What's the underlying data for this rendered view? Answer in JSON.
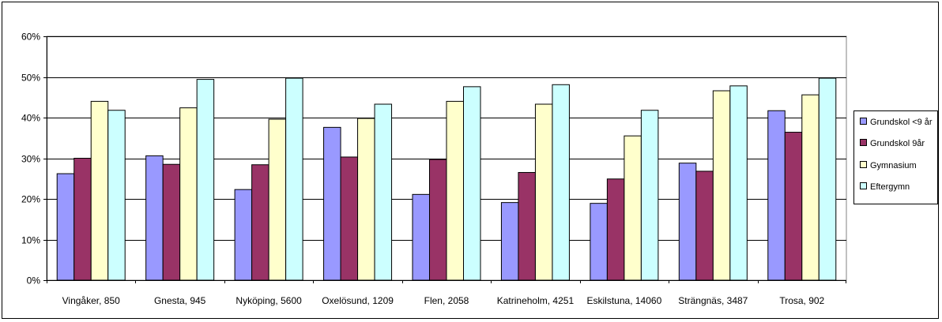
{
  "chart_data": {
    "type": "bar",
    "title": "",
    "xlabel": "",
    "ylabel": "",
    "ylim": [
      0,
      0.6
    ],
    "y_ticks": [
      0,
      0.1,
      0.2,
      0.3,
      0.4,
      0.5,
      0.6
    ],
    "y_tick_labels": [
      "0%",
      "10%",
      "20%",
      "30%",
      "40%",
      "50%",
      "60%"
    ],
    "grid": true,
    "legend_position": "right",
    "categories": [
      "Vingåker, 850",
      "Gnesta, 945",
      "Nyköping, 5600",
      "Oxelösund, 1209",
      "Flen, 2058",
      "Katrineholm, 4251",
      "Eskilstuna, 14060",
      "Strängnäs, 3487",
      "Trosa, 902"
    ],
    "series": [
      {
        "name": "Grundskol <9 år",
        "color": "#9999ff",
        "values": [
          0.262,
          0.306,
          0.223,
          0.376,
          0.211,
          0.191,
          0.189,
          0.288,
          0.417
        ]
      },
      {
        "name": "Grundskol 9år",
        "color": "#993366",
        "values": [
          0.3,
          0.285,
          0.284,
          0.303,
          0.297,
          0.265,
          0.249,
          0.268,
          0.364
        ]
      },
      {
        "name": "Gymnasium",
        "color": "#ffffcc",
        "values": [
          0.44,
          0.424,
          0.396,
          0.398,
          0.44,
          0.433,
          0.355,
          0.466,
          0.456
        ]
      },
      {
        "name": "Eftergymn",
        "color": "#ccffff",
        "values": [
          0.418,
          0.494,
          0.497,
          0.433,
          0.476,
          0.481,
          0.418,
          0.478,
          0.497
        ]
      }
    ]
  }
}
